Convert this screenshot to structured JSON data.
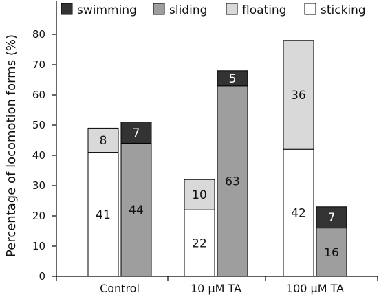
{
  "chart_data": {
    "type": "bar",
    "stacked": true,
    "ylabel": "Percentage of locomotion forms (%)",
    "xlabel": "",
    "ylim": [
      0,
      90
    ],
    "yticks": [
      0,
      10,
      20,
      30,
      40,
      50,
      60,
      70,
      80
    ],
    "grid": false,
    "legend_position": "top",
    "categories": [
      "Control",
      "10 μM TA",
      "100 μM TA"
    ],
    "legend": [
      {
        "key": "swimming",
        "label": "swimming",
        "color": "#333333"
      },
      {
        "key": "sliding",
        "label": "sliding",
        "color": "#9e9e9e"
      },
      {
        "key": "floating",
        "label": "floating",
        "color": "#d9d9d9"
      },
      {
        "key": "sticking",
        "label": "sticking",
        "color": "#ffffff"
      }
    ],
    "bars": [
      {
        "category": "Control",
        "segments": [
          {
            "key": "sticking",
            "value": 41,
            "label": "41"
          },
          {
            "key": "floating",
            "value": 8,
            "label": "8"
          }
        ]
      },
      {
        "category": "Control",
        "segments": [
          {
            "key": "sliding",
            "value": 44,
            "label": "44"
          },
          {
            "key": "swimming",
            "value": 7,
            "label": "7"
          }
        ]
      },
      {
        "category": "10 μM TA",
        "segments": [
          {
            "key": "sticking",
            "value": 22,
            "label": "22"
          },
          {
            "key": "floating",
            "value": 10,
            "label": "10"
          }
        ]
      },
      {
        "category": "10 μM TA",
        "segments": [
          {
            "key": "sliding",
            "value": 63,
            "label": "63"
          },
          {
            "key": "swimming",
            "value": 5,
            "label": "5"
          }
        ]
      },
      {
        "category": "100 μM TA",
        "segments": [
          {
            "key": "sticking",
            "value": 42,
            "label": "42"
          },
          {
            "key": "floating",
            "value": 36,
            "label": "36"
          }
        ]
      },
      {
        "category": "100 μM TA",
        "segments": [
          {
            "key": "sliding",
            "value": 16,
            "label": "16"
          },
          {
            "key": "swimming",
            "value": 7,
            "label": "7"
          }
        ]
      }
    ]
  }
}
